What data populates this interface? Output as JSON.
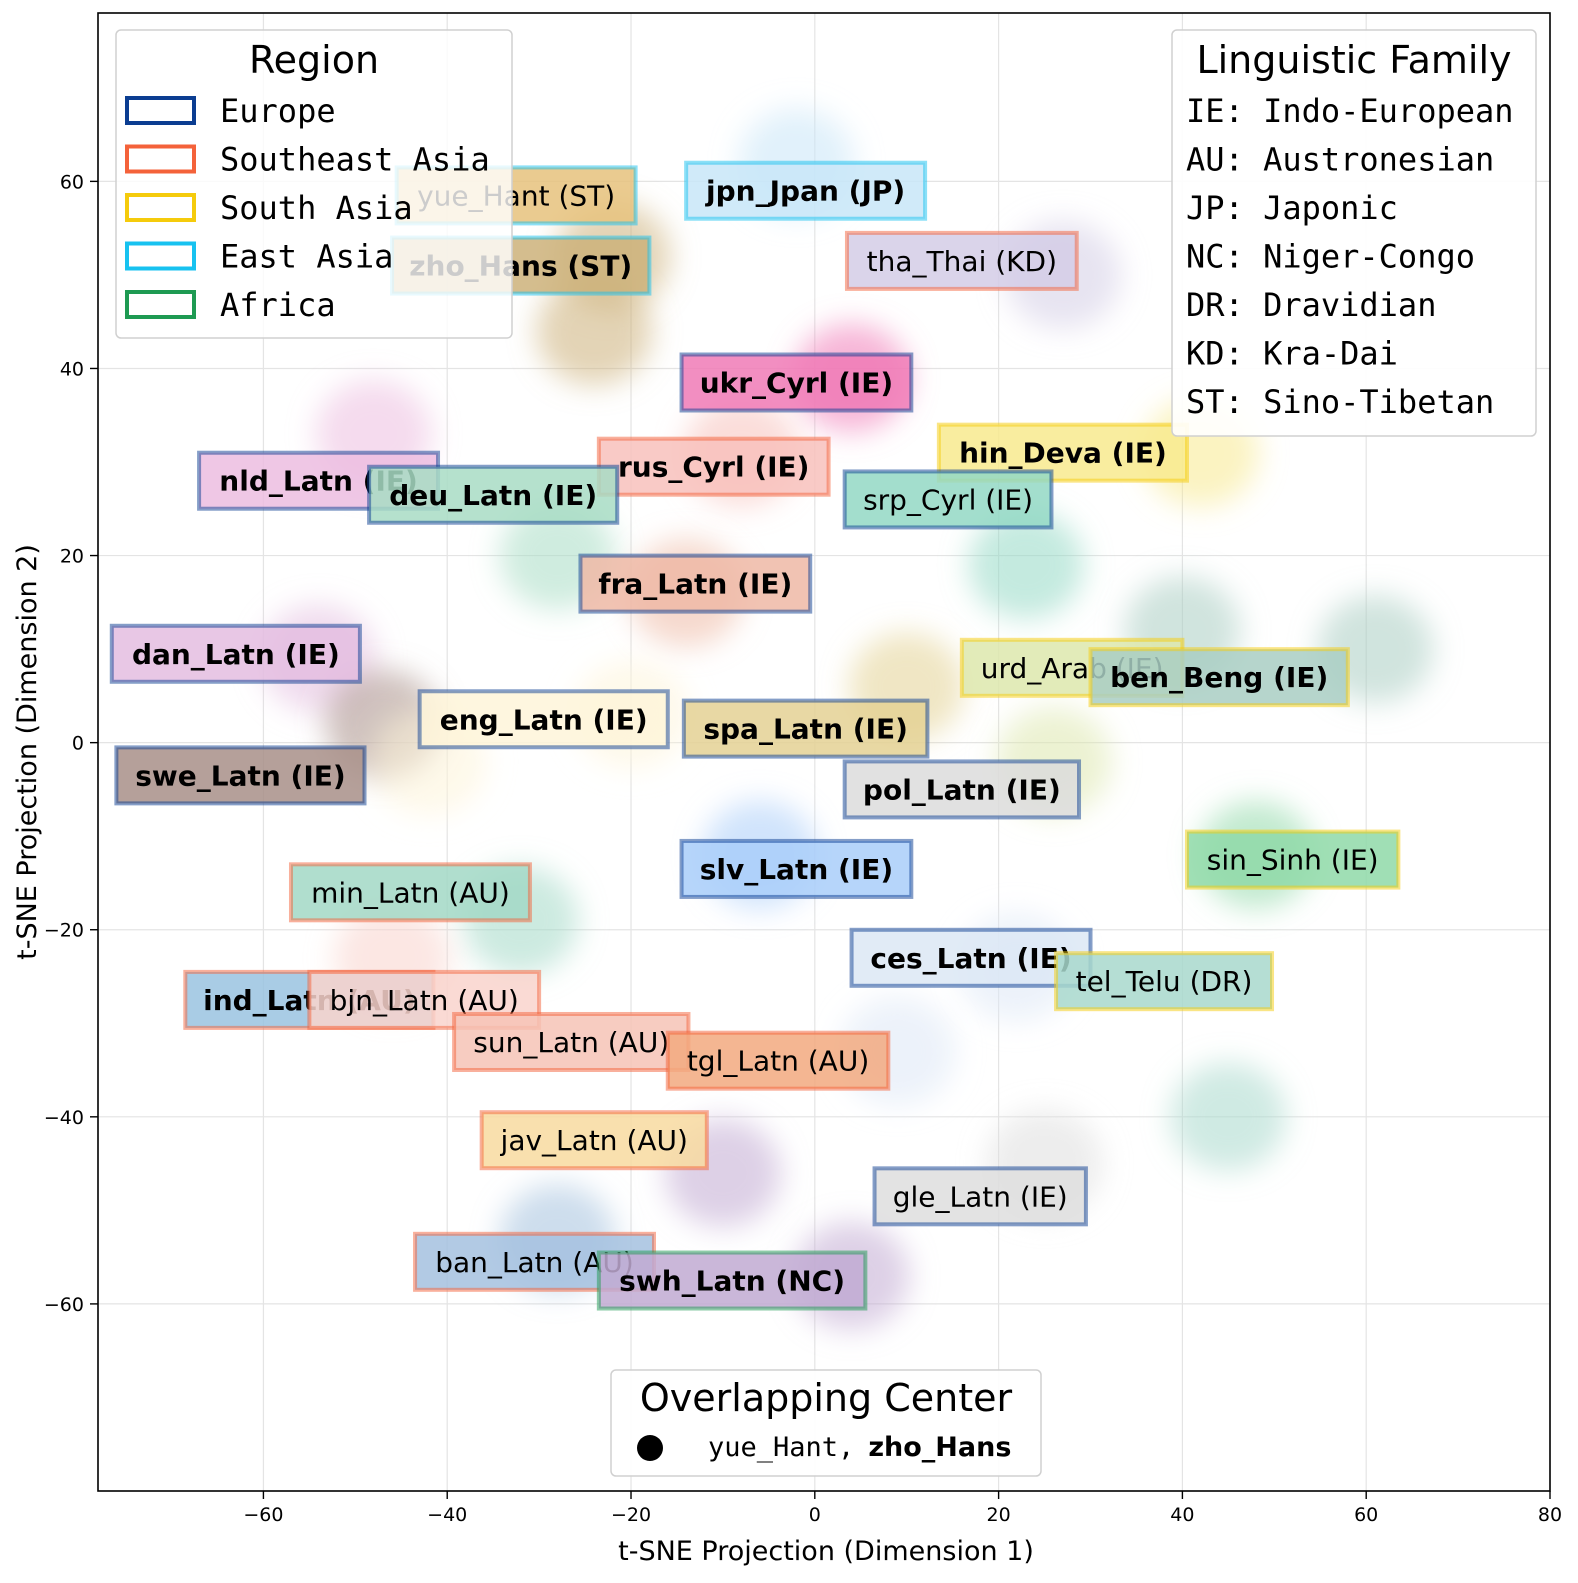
{
  "chart_data": {
    "type": "scatter",
    "subtype": "t-SNE density clusters with language labels",
    "xlabel": "t-SNE Projection (Dimension 1)",
    "ylabel": "t-SNE Projection (Dimension 2)",
    "xlim": [
      -78,
      80
    ],
    "ylim": [
      -80,
      78
    ],
    "xticks": [
      -60,
      -40,
      -20,
      0,
      20,
      40,
      60,
      80
    ],
    "yticks": [
      -60,
      -40,
      -20,
      0,
      20,
      40,
      60
    ],
    "xtick_labels": [
      "−60",
      "−40",
      "−20",
      "0",
      "20",
      "40",
      "60",
      "80"
    ],
    "ytick_labels": [
      "−60",
      "−40",
      "−20",
      "0",
      "20",
      "40",
      "60"
    ],
    "grid": true,
    "region_colors": {
      "Europe": "#0b3d91",
      "Southeast Asia": "#f4623a",
      "South Asia": "#f5cb0c",
      "East Asia": "#17c2f0",
      "Africa": "#1e9a52"
    },
    "region_legend": {
      "title": "Region",
      "placement": "top-left",
      "items": [
        "Europe",
        "Southeast Asia",
        "South Asia",
        "East Asia",
        "Africa"
      ]
    },
    "family_legend": {
      "title": "Linguistic Family",
      "placement": "top-right",
      "items": [
        "IE: Indo-European",
        "AU: Austronesian",
        "JP: Japonic",
        "NC: Niger-Congo",
        "DR: Dravidian",
        "KD: Kra-Dai",
        "ST: Sino-Tibetan"
      ]
    },
    "center_legend": {
      "title": "Overlapping Center",
      "placement": "bottom-center",
      "entry_plain": "yue_Hant,",
      "entry_bold": "zho_Hans"
    },
    "clusters": [
      {
        "x": -22,
        "y": 52
      },
      {
        "x": -24,
        "y": 44
      },
      {
        "x": -2,
        "y": 62
      },
      {
        "x": 27,
        "y": 50
      },
      {
        "x": 4,
        "y": 39
      },
      {
        "x": 42,
        "y": 31
      },
      {
        "x": -8,
        "y": 31
      },
      {
        "x": -48,
        "y": 33
      },
      {
        "x": -28,
        "y": 20
      },
      {
        "x": 23,
        "y": 19
      },
      {
        "x": -14,
        "y": 16
      },
      {
        "x": -54,
        "y": 9
      },
      {
        "x": 10,
        "y": 6
      },
      {
        "x": 40,
        "y": 12
      },
      {
        "x": 61,
        "y": 10
      },
      {
        "x": -47,
        "y": 2
      },
      {
        "x": -42,
        "y": -2
      },
      {
        "x": -20,
        "y": 3
      },
      {
        "x": 26,
        "y": -2
      },
      {
        "x": -6,
        "y": -12
      },
      {
        "x": 48,
        "y": -12
      },
      {
        "x": -32,
        "y": -19
      },
      {
        "x": -46,
        "y": -23
      },
      {
        "x": 22,
        "y": -24
      },
      {
        "x": 45,
        "y": -40
      },
      {
        "x": 9,
        "y": -33
      },
      {
        "x": -10,
        "y": -46
      },
      {
        "x": 25,
        "y": -45
      },
      {
        "x": -28,
        "y": -53
      },
      {
        "x": 4,
        "y": -57
      }
    ],
    "labels": [
      {
        "text": "yue_Hant (ST)",
        "x": -32.5,
        "y": 58.5,
        "region": "East Asia",
        "bold": false,
        "fill": "#e6c27c",
        "w": 26
      },
      {
        "text": "jpn_Jpan (JP)",
        "x": -1,
        "y": 59,
        "region": "East Asia",
        "bold": true,
        "fill": "#c8e6f8",
        "w": 26
      },
      {
        "text": "zho_Hans (ST)",
        "x": -32,
        "y": 51,
        "region": "East Asia",
        "bold": true,
        "fill": "#ccb17a",
        "w": 28
      },
      {
        "text": "tha_Thai (KD)",
        "x": 16,
        "y": 51.5,
        "region": "Southeast Asia",
        "bold": false,
        "fill": "#d4cde6",
        "w": 25
      },
      {
        "text": "ukr_Cyrl (IE)",
        "x": -2,
        "y": 38.5,
        "region": "Europe",
        "bold": true,
        "fill": "#f07ab6",
        "w": 25
      },
      {
        "text": "hin_Deva (IE)",
        "x": 27,
        "y": 31,
        "region": "South Asia",
        "bold": true,
        "fill": "#f8ea8e",
        "w": 27
      },
      {
        "text": "rus_Cyrl (IE)",
        "x": -11,
        "y": 29.5,
        "region": "Southeast Asia",
        "bold": true,
        "fill": "#f8c1bc",
        "w": 25
      },
      {
        "text": "nld_Latn (IE)",
        "x": -54,
        "y": 28,
        "region": "Europe",
        "bold": true,
        "fill": "#ecbde0",
        "w": 26
      },
      {
        "text": "deu_Latn (IE)",
        "x": -35,
        "y": 26.5,
        "region": "Europe",
        "bold": true,
        "fill": "#a8dcc4",
        "w": 27
      },
      {
        "text": "srp_Cyrl (IE)",
        "x": 14.5,
        "y": 26,
        "region": "Europe",
        "bold": false,
        "fill": "#93d8c4",
        "w": 22.5
      },
      {
        "text": "fra_Latn (IE)",
        "x": -13,
        "y": 17,
        "region": "Europe",
        "bold": true,
        "fill": "#eeb9a6",
        "w": 25
      },
      {
        "text": "dan_Latn (IE)",
        "x": -63,
        "y": 9.5,
        "region": "Europe",
        "bold": true,
        "fill": "#e4bde0",
        "w": 27
      },
      {
        "text": "urd_Arab (IE)",
        "x": 28,
        "y": 8,
        "region": "South Asia",
        "bold": false,
        "fill": "#dde8ad",
        "w": 24
      },
      {
        "text": "ben_Beng (IE)",
        "x": 44,
        "y": 7,
        "region": "South Asia",
        "bold": true,
        "fill": "#a9cec3",
        "w": 28
      },
      {
        "text": "eng_Latn (IE)",
        "x": -29.5,
        "y": 2.5,
        "region": "Europe",
        "bold": true,
        "fill": "#fef4d9",
        "w": 27
      },
      {
        "text": "spa_Latn (IE)",
        "x": -1,
        "y": 1.5,
        "region": "Europe",
        "bold": true,
        "fill": "#e4d194",
        "w": 26.5
      },
      {
        "text": "swe_Latn (IE)",
        "x": -62.5,
        "y": -3.5,
        "region": "Europe",
        "bold": true,
        "fill": "#a88f88",
        "w": 27
      },
      {
        "text": "pol_Latn (IE)",
        "x": 16,
        "y": -5,
        "region": "Europe",
        "bold": true,
        "fill": "#dcdcdc",
        "w": 25.5
      },
      {
        "text": "slv_Latn (IE)",
        "x": -2,
        "y": -13.5,
        "region": "Europe",
        "bold": true,
        "fill": "#a9cef9",
        "w": 25
      },
      {
        "text": "sin_Sinh (IE)",
        "x": 52,
        "y": -12.5,
        "region": "South Asia",
        "bold": false,
        "fill": "#8fd9a8",
        "w": 23
      },
      {
        "text": "min_Latn (AU)",
        "x": -44,
        "y": -16,
        "region": "Southeast Asia",
        "bold": false,
        "fill": "#a2d8c6",
        "w": 26
      },
      {
        "text": "ces_Latn (IE)",
        "x": 17,
        "y": -23,
        "region": "Europe",
        "bold": true,
        "fill": "#dce8f5",
        "w": 26
      },
      {
        "text": "tel_Telu (DR)",
        "x": 38,
        "y": -25.5,
        "region": "South Asia",
        "bold": false,
        "fill": "#a8d8cc",
        "w": 23.5
      },
      {
        "text": "ind_Latn (AU)",
        "x": -55,
        "y": -27.5,
        "region": "Southeast Asia",
        "bold": true,
        "fill": "#9ac3e0",
        "w": 27
      },
      {
        "text": "bjn_Latn (AU)",
        "x": -42.5,
        "y": -27.5,
        "region": "Southeast Asia",
        "bold": false,
        "fill": "#f9d4cc",
        "w": 25
      },
      {
        "text": "sun_Latn (AU)",
        "x": -26.5,
        "y": -32,
        "region": "Southeast Asia",
        "bold": false,
        "fill": "#f6c3b6",
        "w": 25.5
      },
      {
        "text": "tgl_Latn (AU)",
        "x": -4,
        "y": -34,
        "region": "Southeast Asia",
        "bold": false,
        "fill": "#f2a97f",
        "w": 24
      },
      {
        "text": "jav_Latn (AU)",
        "x": -24,
        "y": -42.5,
        "region": "Southeast Asia",
        "bold": false,
        "fill": "#f8dba0",
        "w": 24.5
      },
      {
        "text": "gle_Latn (IE)",
        "x": 18,
        "y": -48.5,
        "region": "Europe",
        "bold": false,
        "fill": "#dedede",
        "w": 23
      },
      {
        "text": "ban_Latn (AU)",
        "x": -30.5,
        "y": -55.5,
        "region": "Southeast Asia",
        "bold": false,
        "fill": "#a4c1df",
        "w": 26
      },
      {
        "text": "swh_Latn (NC)",
        "x": -9,
        "y": -57.5,
        "region": "Africa",
        "bold": true,
        "fill": "#c1aad2",
        "w": 29
      }
    ]
  }
}
